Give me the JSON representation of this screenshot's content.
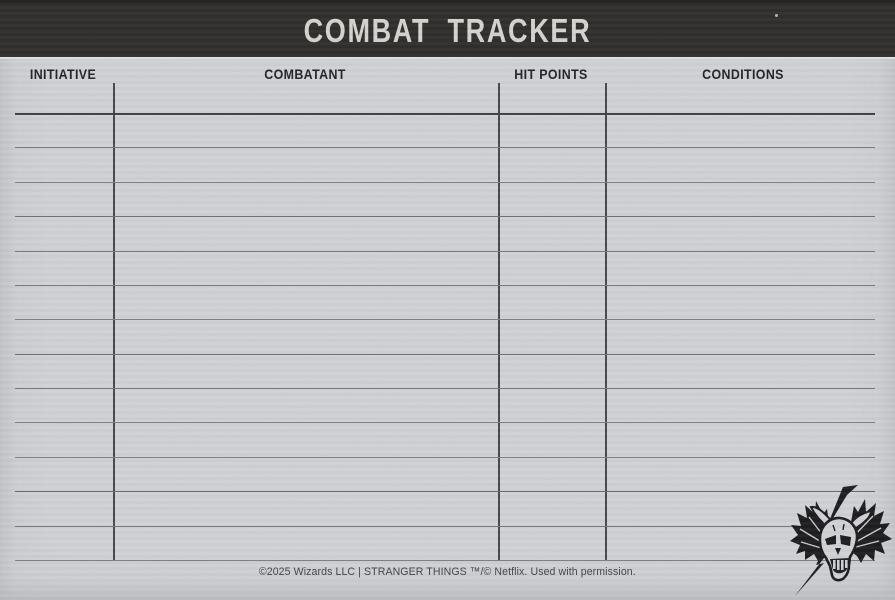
{
  "header": {
    "title": "COMBAT TRACKER"
  },
  "table": {
    "columns": [
      {
        "label": "INITIATIVE"
      },
      {
        "label": "COMBATANT"
      },
      {
        "label": "HIT POINTS"
      },
      {
        "label": "CONDITIONS"
      }
    ],
    "row_count": 14,
    "rows_content": []
  },
  "footer": {
    "copyright_text": "©2025 Wizards LLC | STRANGER THINGS ™/© Netflix. Used with permission."
  },
  "logo": {
    "icon": "winged-horned-skull-lightning-icon"
  },
  "colors": {
    "paper": "#d1d3d7",
    "header_bar": "#2e2d2b",
    "title_text": "#d8d5cf",
    "heading_text": "#232327",
    "rule_line": "#787c84",
    "rule_line_dark": "#3e3f44",
    "column_divider": "#46474c",
    "footer_text": "#434347",
    "ink": "#1c1b1e"
  }
}
